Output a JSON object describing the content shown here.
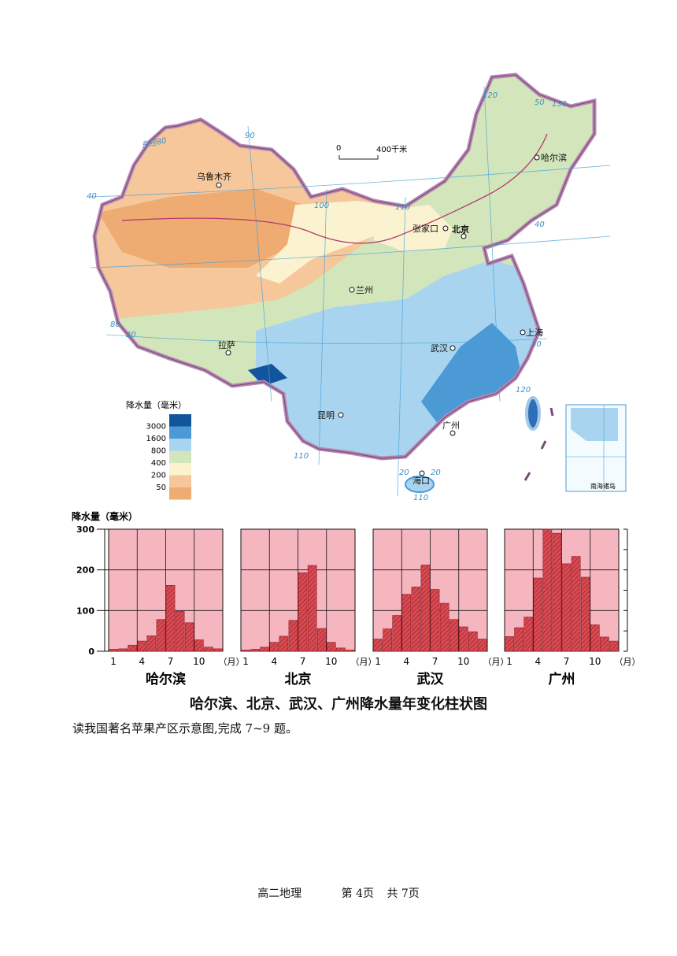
{
  "map": {
    "scale_zero": "0",
    "scale_label": "400千米",
    "legend_title": "降水量（毫米）",
    "legend": [
      {
        "label": "3000",
        "color": "#12559c"
      },
      {
        "label": "1600",
        "color": "#4b9ad6"
      },
      {
        "label": "800",
        "color": "#a8d4ef"
      },
      {
        "label": "400",
        "color": "#d3e6bb"
      },
      {
        "label": "200",
        "color": "#fbf3cf"
      },
      {
        "label": "50",
        "color": "#f6c79b"
      },
      {
        "label": "",
        "color": "#eeab72"
      }
    ],
    "cities": [
      {
        "name": "乌鲁木齐"
      },
      {
        "name": "哈尔滨"
      },
      {
        "name": "张家口"
      },
      {
        "name": "北京"
      },
      {
        "name": "兰州"
      },
      {
        "name": "拉萨"
      },
      {
        "name": "上海"
      },
      {
        "name": "武汉"
      },
      {
        "name": "昆明"
      },
      {
        "name": "广州"
      },
      {
        "name": "海口"
      }
    ],
    "graticule_labels": [
      "东经80",
      "90",
      "100",
      "110",
      "120",
      "130",
      "50",
      "40",
      "40",
      "30",
      "30",
      "20",
      "20",
      "110",
      "120",
      "80",
      "110",
      "10",
      "120",
      "110",
      "120"
    ],
    "inset_label": "南海诸岛"
  },
  "chart_data": [
    {
      "type": "bar",
      "title": "哈尔滨",
      "ylabel": "降水量（毫米）",
      "ylim": [
        0,
        300
      ],
      "categories": [
        "1",
        "2",
        "3",
        "4",
        "5",
        "6",
        "7",
        "8",
        "9",
        "10",
        "11",
        "12"
      ],
      "values": [
        5,
        6,
        15,
        25,
        38,
        78,
        162,
        98,
        70,
        28,
        10,
        6
      ]
    },
    {
      "type": "bar",
      "title": "北京",
      "ylabel": "降水量（毫米）",
      "ylim": [
        0,
        300
      ],
      "categories": [
        "1",
        "2",
        "3",
        "4",
        "5",
        "6",
        "7",
        "8",
        "9",
        "10",
        "11",
        "12"
      ],
      "values": [
        3,
        5,
        10,
        22,
        37,
        76,
        193,
        211,
        56,
        22,
        8,
        3
      ]
    },
    {
      "type": "bar",
      "title": "武汉",
      "ylabel": "降水量（毫米）",
      "ylim": [
        0,
        300
      ],
      "categories": [
        "1",
        "2",
        "3",
        "4",
        "5",
        "6",
        "7",
        "8",
        "9",
        "10",
        "11",
        "12"
      ],
      "values": [
        30,
        55,
        88,
        140,
        158,
        212,
        152,
        118,
        78,
        60,
        48,
        30
      ]
    },
    {
      "type": "bar",
      "title": "广州",
      "ylabel": "降水量（毫米）",
      "ylim": [
        0,
        300
      ],
      "categories": [
        "1",
        "2",
        "3",
        "4",
        "5",
        "6",
        "7",
        "8",
        "9",
        "10",
        "11",
        "12"
      ],
      "values": [
        36,
        58,
        84,
        180,
        300,
        290,
        215,
        233,
        182,
        65,
        35,
        25
      ]
    }
  ],
  "charts_common": {
    "ylabel": "降水量（毫米）",
    "y_ticks": [
      "300",
      "200",
      "100",
      "0"
    ],
    "x_ticks": [
      "1",
      "4",
      "7",
      "10"
    ],
    "x_unit": "（月）",
    "figure_title": "哈尔滨、北京、武汉、广州降水量年变化柱状图"
  },
  "instruction": "读我国著名苹果产区示意图,完成 7~9 题。",
  "footer": {
    "subject": "高二地理",
    "page": "第 4页",
    "total": "共 7页"
  }
}
